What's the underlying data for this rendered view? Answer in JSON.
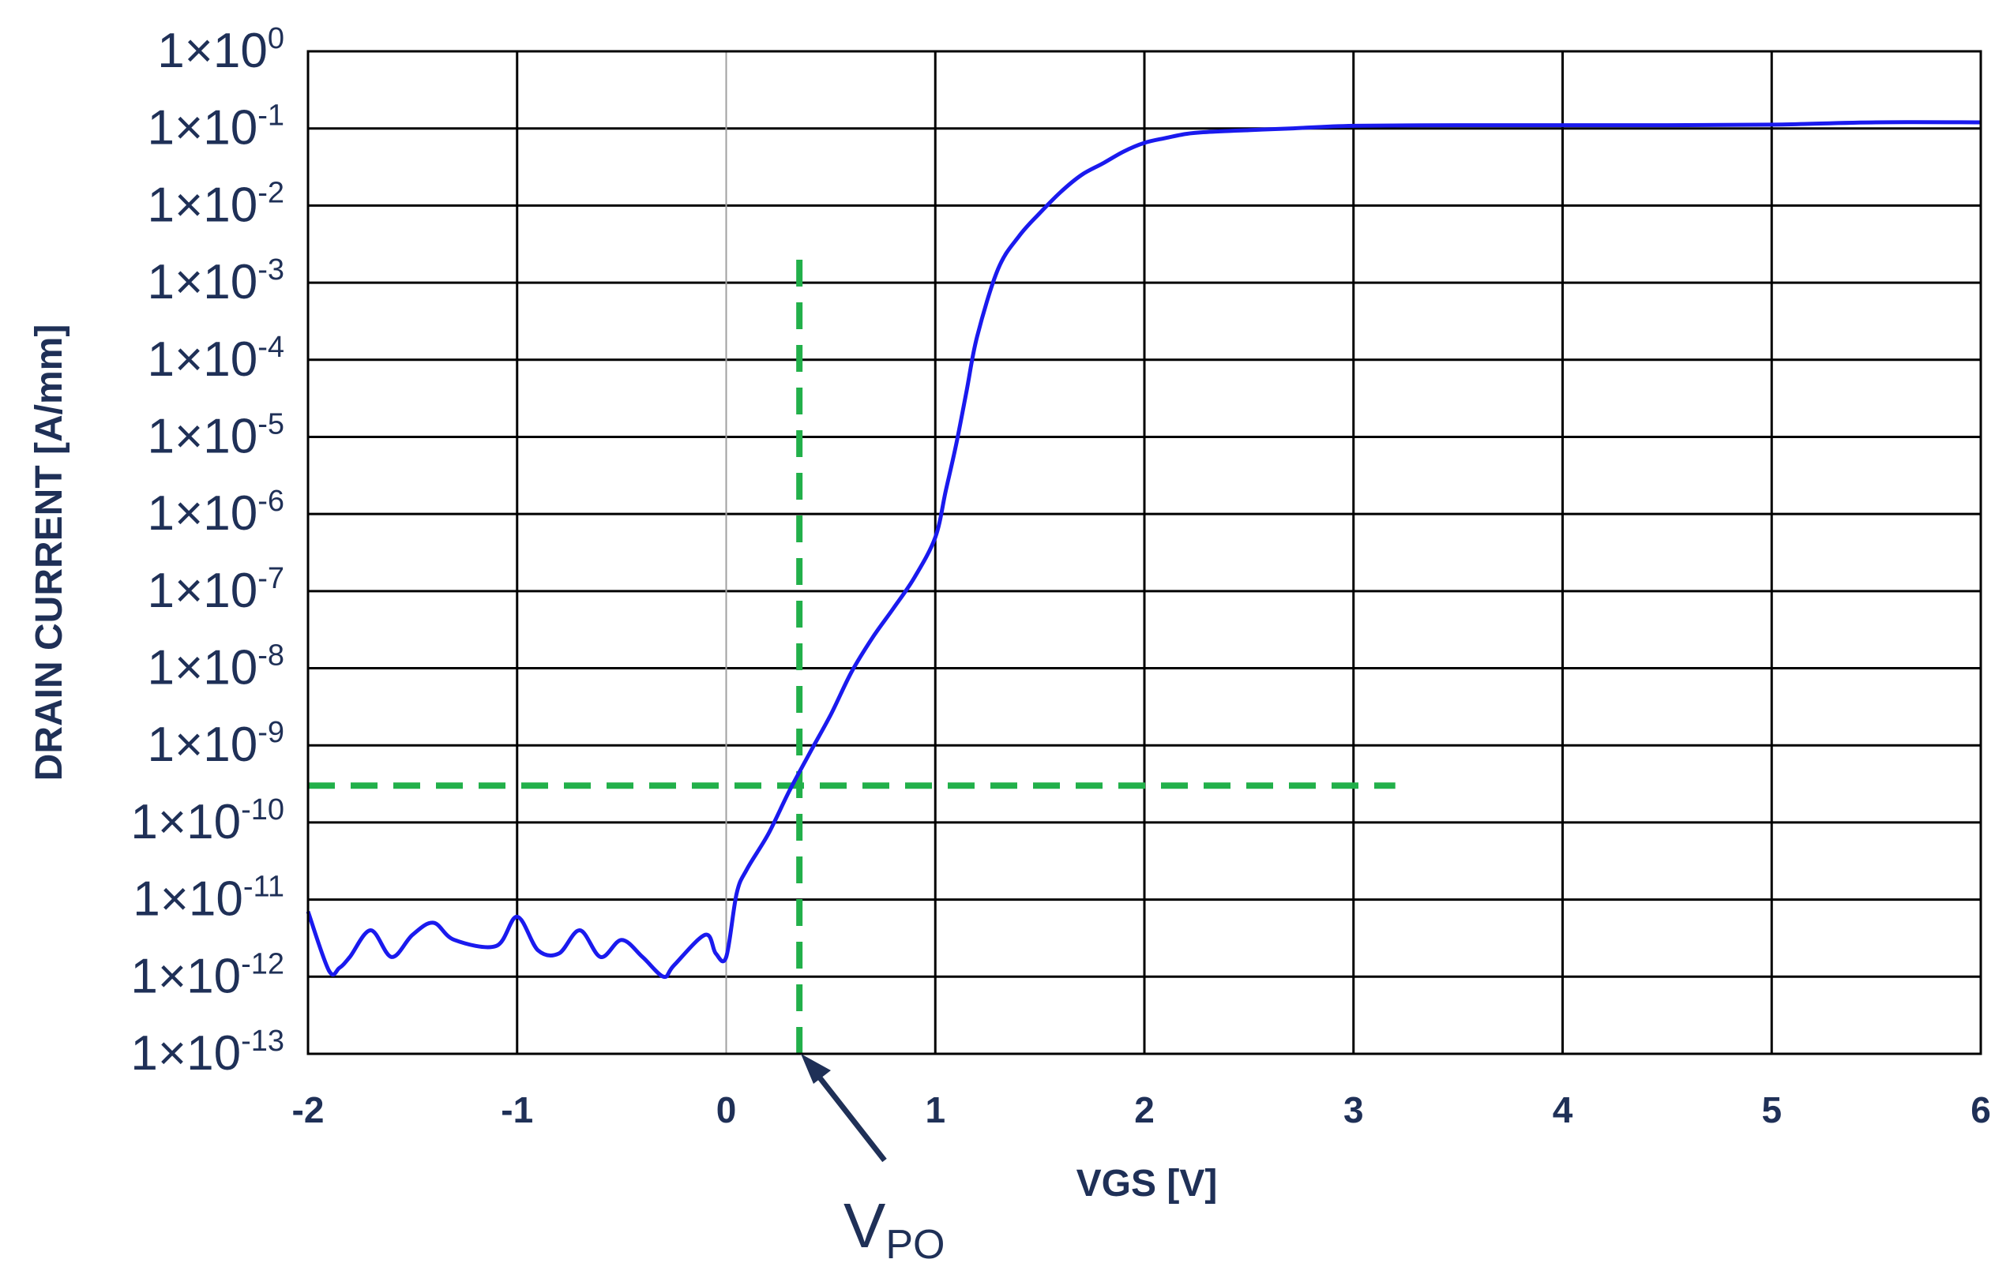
{
  "chart_data": {
    "type": "line",
    "xlabel": "VGS [V]",
    "ylabel": "DRAIN CURRENT [A/mm]",
    "xlim": [
      -2,
      6
    ],
    "x_ticks": [
      "-2",
      "-1",
      "0",
      "1",
      "2",
      "3",
      "4",
      "5",
      "6"
    ],
    "y_scale": "log",
    "ylim": [
      1e-13,
      1
    ],
    "y_ticks": [
      {
        "value": 1.0,
        "mantissa": "1×10",
        "exp": "0"
      },
      {
        "value": 0.1,
        "mantissa": "1×10",
        "exp": "-1"
      },
      {
        "value": 0.01,
        "mantissa": "1×10",
        "exp": "-2"
      },
      {
        "value": 0.001,
        "mantissa": "1×10",
        "exp": "-3"
      },
      {
        "value": 0.0001,
        "mantissa": "1×10",
        "exp": "-4"
      },
      {
        "value": 1e-05,
        "mantissa": "1×10",
        "exp": "-5"
      },
      {
        "value": 1e-06,
        "mantissa": "1×10",
        "exp": "-6"
      },
      {
        "value": 1e-07,
        "mantissa": "1×10",
        "exp": "-7"
      },
      {
        "value": 1e-08,
        "mantissa": "1×10",
        "exp": "-8"
      },
      {
        "value": 1e-09,
        "mantissa": "1×10",
        "exp": "-9"
      },
      {
        "value": 1e-10,
        "mantissa": "1×10",
        "exp": "-10"
      },
      {
        "value": 1e-11,
        "mantissa": "1×10",
        "exp": "-11"
      },
      {
        "value": 1e-12,
        "mantissa": "1×10",
        "exp": "-12"
      },
      {
        "value": 1e-13,
        "mantissa": "1×10",
        "exp": "-13"
      }
    ],
    "grid": true,
    "series": [
      {
        "color": "#1a1aee",
        "x": [
          -2.0,
          -1.9,
          -1.85,
          -1.8,
          -1.7,
          -1.6,
          -1.5,
          -1.4,
          -1.3,
          -1.1,
          -1.0,
          -0.9,
          -0.8,
          -0.7,
          -0.6,
          -0.5,
          -0.4,
          -0.3,
          -0.25,
          -0.1,
          -0.05,
          0.0,
          0.05,
          0.1,
          0.2,
          0.3,
          0.4,
          0.5,
          0.6,
          0.7,
          0.8,
          0.9,
          1.0,
          1.05,
          1.1,
          1.15,
          1.2,
          1.3,
          1.4,
          1.5,
          1.6,
          1.7,
          1.8,
          1.9,
          2.0,
          2.1,
          2.2,
          2.3,
          2.5,
          2.7,
          3.0,
          3.5,
          4.0,
          4.5,
          5.0,
          5.5,
          6.0
        ],
        "y": [
          7e-12,
          1.2e-12,
          1.3e-12,
          1.8e-12,
          4e-12,
          1.8e-12,
          3.5e-12,
          5e-12,
          3e-12,
          2.5e-12,
          6e-12,
          2.2e-12,
          2e-12,
          4e-12,
          1.8e-12,
          3e-12,
          1.8e-12,
          1e-12,
          1.4e-12,
          3.5e-12,
          2e-12,
          1.8e-12,
          1.2e-11,
          2.5e-11,
          7e-11,
          2.5e-10,
          8e-10,
          2.5e-09,
          9e-09,
          2.5e-08,
          6e-08,
          1.5e-07,
          5e-07,
          2e-06,
          8e-06,
          4e-05,
          0.0002,
          0.0015,
          0.004,
          0.008,
          0.015,
          0.025,
          0.035,
          0.05,
          0.065,
          0.075,
          0.085,
          0.09,
          0.095,
          0.1,
          0.108,
          0.11,
          0.11,
          0.11,
          0.112,
          0.12,
          0.12
        ]
      }
    ],
    "reference_lines": [
      {
        "kind": "horizontal",
        "y": 3e-10,
        "x_from": -2,
        "x_to": 3.2,
        "color": "#22b04a"
      },
      {
        "kind": "vertical",
        "x": 0.35,
        "y_from": 1e-13,
        "y_to": 0.002,
        "color": "#22b04a"
      }
    ],
    "annotation": {
      "text": "V",
      "subscript": "PO",
      "arrow_points_to_x": 0.35,
      "color": "#1f3057"
    }
  }
}
